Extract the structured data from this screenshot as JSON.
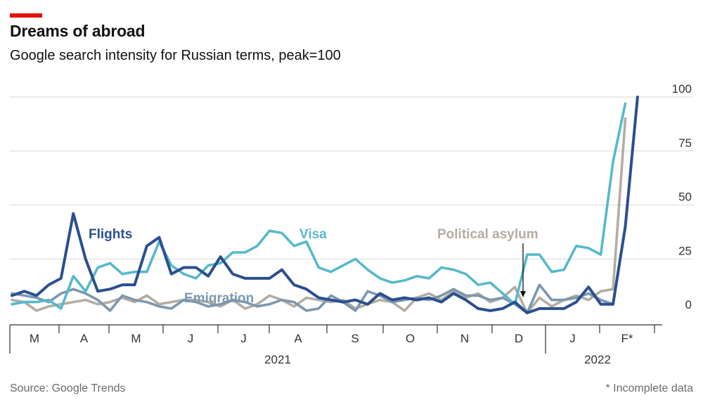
{
  "header": {
    "title": "Dreams of abroad",
    "subtitle": "Google search intensity for Russian terms, peak=100"
  },
  "footer": {
    "source": "Source: Google Trends",
    "footnote": "* Incomplete data"
  },
  "colors": {
    "accent": "#e3120b",
    "flights": "#2b4f8f",
    "visa": "#56b9cc",
    "emigration": "#7c98b0",
    "political_asylum": "#b3ada2",
    "gridline": "#d9d9d9",
    "axis": "#333333"
  },
  "chart_data": {
    "type": "line",
    "title": "Dreams of abroad",
    "subtitle": "Google search intensity for Russian terms, peak=100",
    "xlabel": "",
    "ylabel": "",
    "ylim": [
      0,
      100
    ],
    "yticks": [
      "0",
      "25",
      "50",
      "75",
      "100"
    ],
    "grid": true,
    "x_month_labels": [
      "M",
      "A",
      "M",
      "J",
      "J",
      "A",
      "S",
      "O",
      "N",
      "D",
      "J",
      "F*"
    ],
    "x_year_labels": [
      "2021",
      "2022"
    ],
    "x_weeks_start": "2021-03-01",
    "series": [
      {
        "name": "Flights",
        "color": "#2b4f8f",
        "values": [
          8,
          10,
          8,
          13,
          16,
          46,
          25,
          10,
          11,
          13,
          13,
          31,
          35,
          18,
          21,
          21,
          17,
          26,
          18,
          16,
          16,
          16,
          20,
          13,
          11,
          7,
          6,
          5,
          6,
          4,
          9,
          6,
          7,
          6,
          7,
          5,
          9,
          6,
          2,
          1,
          2,
          5,
          0,
          2,
          2,
          2,
          5,
          12,
          4,
          4,
          40,
          100
        ]
      },
      {
        "name": "Visa",
        "color": "#56b9cc",
        "values": [
          4,
          5,
          5,
          6,
          2,
          17,
          10,
          21,
          23,
          18,
          19,
          19,
          33,
          22,
          18,
          16,
          22,
          23,
          28,
          28,
          31,
          38,
          37,
          31,
          33,
          21,
          19,
          22,
          25,
          20,
          16,
          14,
          15,
          17,
          16,
          21,
          20,
          18,
          13,
          14,
          9,
          4,
          27,
          27,
          19,
          20,
          31,
          30,
          27,
          70,
          97
        ]
      },
      {
        "name": "Emigration",
        "color": "#7c98b0",
        "values": [
          9,
          8,
          7,
          5,
          9,
          11,
          9,
          6,
          1,
          8,
          6,
          5,
          3,
          2,
          6,
          5,
          3,
          4,
          6,
          5,
          3,
          4,
          6,
          5,
          1,
          2,
          8,
          5,
          1,
          10,
          8,
          5,
          6,
          7,
          6,
          8,
          11,
          8,
          8,
          6,
          7,
          4,
          0,
          13,
          6,
          6,
          7,
          9,
          6,
          4
        ]
      },
      {
        "name": "Political asylum",
        "color": "#b3ada2",
        "values": [
          6,
          5,
          1,
          3,
          4,
          5,
          6,
          4,
          5,
          7,
          5,
          8,
          4,
          5,
          6,
          6,
          5,
          3,
          6,
          2,
          4,
          8,
          6,
          3,
          7,
          6,
          5,
          6,
          2,
          4,
          6,
          5,
          1,
          7,
          9,
          6,
          10,
          7,
          9,
          5,
          7,
          12,
          0,
          7,
          3,
          6,
          8,
          6,
          10,
          11,
          90
        ]
      }
    ],
    "annotations": [
      {
        "text": "Flights",
        "series": "Flights"
      },
      {
        "text": "Visa",
        "series": "Visa"
      },
      {
        "text": "Emigration",
        "series": "Emigration"
      },
      {
        "text": "Political asylum",
        "series": "Political asylum"
      }
    ]
  }
}
